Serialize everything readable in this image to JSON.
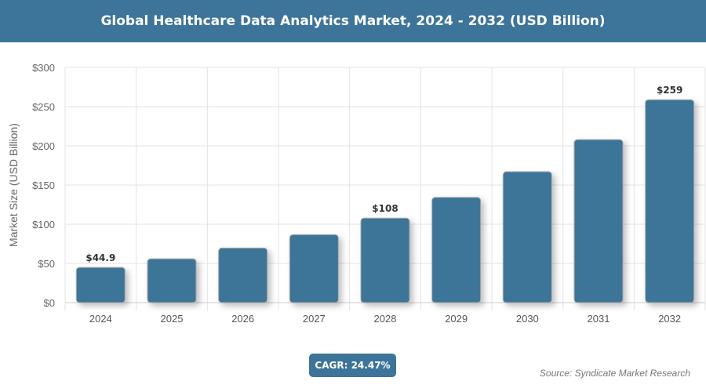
{
  "chart_data": {
    "type": "bar",
    "title": "Global Healthcare Data Analytics Market, 2024 - 2032 (USD Billion)",
    "ylabel": "Market Size (USD Billion)",
    "xlabel": "",
    "categories": [
      "2024",
      "2025",
      "2026",
      "2027",
      "2028",
      "2029",
      "2030",
      "2031",
      "2032"
    ],
    "values": [
      44.9,
      55.9,
      69.6,
      86.6,
      107.8,
      134.2,
      167.0,
      207.9,
      258.8
    ],
    "data_labels": {
      "2024": "$44.9",
      "2028": "$108",
      "2032": "$259"
    },
    "ylim": [
      0,
      300
    ],
    "yticks": [
      0,
      50,
      100,
      150,
      200,
      250,
      300
    ],
    "ytick_labels": [
      "$0",
      "$50",
      "$100",
      "$150",
      "$200",
      "$250",
      "$300"
    ],
    "grid": true,
    "bar_color": "#3d7599"
  },
  "cagr": "CAGR: 24.47%",
  "source": "Source: Syndicate Market Research"
}
